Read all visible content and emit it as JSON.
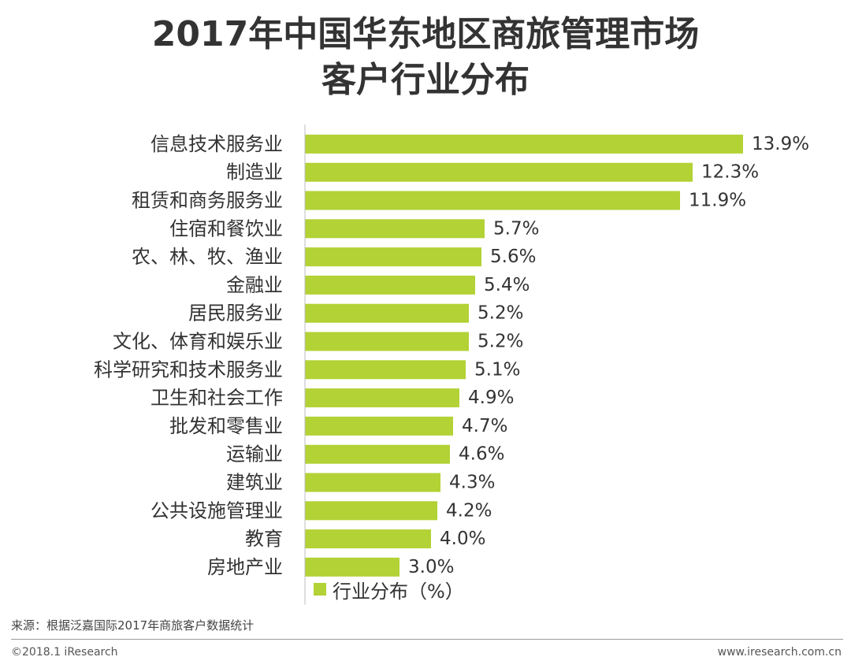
{
  "title": {
    "line1": "2017年中国华东地区商旅管理市场",
    "line2": "客户行业分布"
  },
  "chart_data": {
    "type": "bar",
    "orientation": "horizontal",
    "title": "2017年中国华东地区商旅管理市场客户行业分布",
    "categories": [
      "信息技术服务业",
      "制造业",
      "租赁和商务服务业",
      "住宿和餐饮业",
      "农、林、牧、渔业",
      "金融业",
      "居民服务业",
      "文化、体育和娱乐业",
      "科学研究和技术服务业",
      "卫生和社会工作",
      "批发和零售业",
      "运输业",
      "建筑业",
      "公共设施管理业",
      "教育",
      "房地产业"
    ],
    "values": [
      13.9,
      12.3,
      11.9,
      5.7,
      5.6,
      5.4,
      5.2,
      5.2,
      5.1,
      4.9,
      4.7,
      4.6,
      4.3,
      4.2,
      4.0,
      3.0
    ],
    "value_labels": [
      "13.9%",
      "12.3%",
      "11.9%",
      "5.7%",
      "5.6%",
      "5.4%",
      "5.2%",
      "5.2%",
      "5.1%",
      "4.9%",
      "4.7%",
      "4.6%",
      "4.3%",
      "4.2%",
      "4.0%",
      "3.0%"
    ],
    "series_name": "行业分布（%）",
    "xlim": [
      0,
      14
    ],
    "bar_color": "#b2d235",
    "axis_color": "#bfbfbf",
    "grid": false,
    "legend": "bottom-left"
  },
  "legend": {
    "label": "行业分布（%）"
  },
  "source": "来源：根据泛嘉国际2017年商旅客户数据统计",
  "footer": {
    "left": "©2018.1 iResearch",
    "right": "www.iresearch.com.cn"
  }
}
